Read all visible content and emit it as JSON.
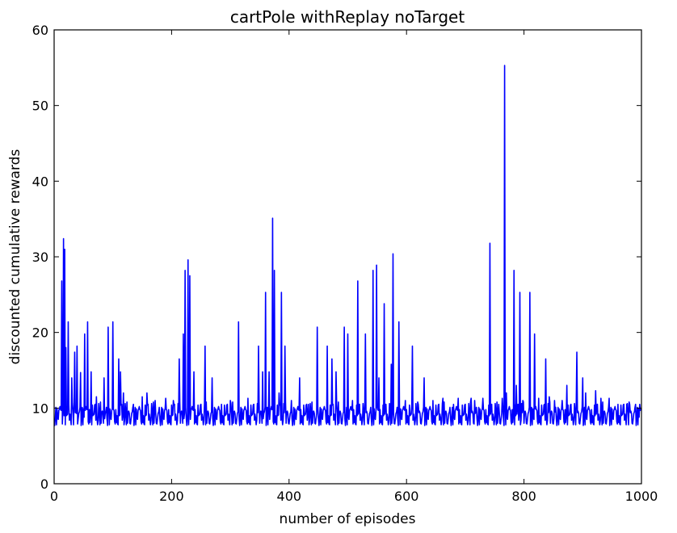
{
  "chart_data": {
    "type": "line",
    "title": "cartPole withReplay noTarget",
    "xlabel": "number of episodes",
    "ylabel": "discounted cumulative rewards",
    "xlim": [
      0,
      1000
    ],
    "ylim": [
      0,
      60
    ],
    "xticks": [
      0,
      200,
      400,
      600,
      800,
      1000
    ],
    "yticks": [
      0,
      10,
      20,
      30,
      40,
      50,
      60
    ],
    "xtick_labels": [
      "0",
      "200",
      "400",
      "600",
      "800",
      "1000"
    ],
    "ytick_labels": [
      "0",
      "10",
      "20",
      "30",
      "40",
      "50",
      "60"
    ],
    "grid": false,
    "legend": "none",
    "series": [
      {
        "color": "#0000ff",
        "baseline": [
          8.6,
          9.6,
          7.8,
          10.5,
          9.0,
          8.2,
          9.9,
          7.7,
          9.3,
          10.8,
          8.4,
          9.1,
          7.9,
          10.2,
          8.8,
          9.5,
          8.0,
          10.6,
          9.2,
          7.8,
          9.8,
          8.5,
          10.1,
          7.9,
          9.4,
          8.7,
          10.4,
          8.1,
          9.7,
          7.8
        ],
        "peaks": [
          {
            "x": 13,
            "y": 26.8
          },
          {
            "x": 16,
            "y": 32.4
          },
          {
            "x": 18,
            "y": 31.0
          },
          {
            "x": 20,
            "y": 18.0
          },
          {
            "x": 24,
            "y": 21.4
          },
          {
            "x": 30,
            "y": 14.0
          },
          {
            "x": 35,
            "y": 17.4
          },
          {
            "x": 39,
            "y": 18.2
          },
          {
            "x": 45,
            "y": 14.7
          },
          {
            "x": 52,
            "y": 19.8
          },
          {
            "x": 57,
            "y": 21.4
          },
          {
            "x": 63,
            "y": 14.8
          },
          {
            "x": 72,
            "y": 11.5
          },
          {
            "x": 85,
            "y": 14.0
          },
          {
            "x": 92,
            "y": 20.7
          },
          {
            "x": 100,
            "y": 21.4
          },
          {
            "x": 110,
            "y": 16.5
          },
          {
            "x": 113,
            "y": 14.8
          },
          {
            "x": 118,
            "y": 12.0
          },
          {
            "x": 135,
            "y": 10.5
          },
          {
            "x": 150,
            "y": 11.5
          },
          {
            "x": 158,
            "y": 12.0
          },
          {
            "x": 172,
            "y": 11.0
          },
          {
            "x": 190,
            "y": 11.3
          },
          {
            "x": 203,
            "y": 11.0
          },
          {
            "x": 213,
            "y": 16.5
          },
          {
            "x": 220,
            "y": 19.8
          },
          {
            "x": 223,
            "y": 28.2
          },
          {
            "x": 228,
            "y": 29.6
          },
          {
            "x": 231,
            "y": 27.5
          },
          {
            "x": 238,
            "y": 14.8
          },
          {
            "x": 257,
            "y": 18.2
          },
          {
            "x": 269,
            "y": 14.0
          },
          {
            "x": 285,
            "y": 10.5
          },
          {
            "x": 300,
            "y": 11.0
          },
          {
            "x": 314,
            "y": 21.4
          },
          {
            "x": 330,
            "y": 11.3
          },
          {
            "x": 348,
            "y": 18.2
          },
          {
            "x": 355,
            "y": 14.8
          },
          {
            "x": 360,
            "y": 25.3
          },
          {
            "x": 366,
            "y": 14.8
          },
          {
            "x": 372,
            "y": 35.1
          },
          {
            "x": 375,
            "y": 28.2
          },
          {
            "x": 383,
            "y": 12.0
          },
          {
            "x": 387,
            "y": 25.3
          },
          {
            "x": 393,
            "y": 18.2
          },
          {
            "x": 404,
            "y": 11.0
          },
          {
            "x": 418,
            "y": 14.0
          },
          {
            "x": 433,
            "y": 10.5
          },
          {
            "x": 448,
            "y": 20.7
          },
          {
            "x": 465,
            "y": 18.2
          },
          {
            "x": 473,
            "y": 16.5
          },
          {
            "x": 480,
            "y": 14.8
          },
          {
            "x": 494,
            "y": 20.7
          },
          {
            "x": 500,
            "y": 19.8
          },
          {
            "x": 508,
            "y": 11.0
          },
          {
            "x": 517,
            "y": 26.8
          },
          {
            "x": 530,
            "y": 19.8
          },
          {
            "x": 543,
            "y": 28.2
          },
          {
            "x": 549,
            "y": 28.9
          },
          {
            "x": 553,
            "y": 14.0
          },
          {
            "x": 562,
            "y": 23.8
          },
          {
            "x": 574,
            "y": 15.8
          },
          {
            "x": 577,
            "y": 30.4
          },
          {
            "x": 587,
            "y": 21.4
          },
          {
            "x": 598,
            "y": 11.0
          },
          {
            "x": 610,
            "y": 18.2
          },
          {
            "x": 620,
            "y": 10.5
          },
          {
            "x": 630,
            "y": 14.0
          },
          {
            "x": 645,
            "y": 11.0
          },
          {
            "x": 662,
            "y": 11.3
          },
          {
            "x": 680,
            "y": 10.5
          },
          {
            "x": 688,
            "y": 11.3
          },
          {
            "x": 700,
            "y": 10.5
          },
          {
            "x": 710,
            "y": 11.3
          },
          {
            "x": 716,
            "y": 11.0
          },
          {
            "x": 730,
            "y": 11.3
          },
          {
            "x": 742,
            "y": 31.8
          },
          {
            "x": 757,
            "y": 10.5
          },
          {
            "x": 763,
            "y": 11.3
          },
          {
            "x": 767,
            "y": 55.3
          },
          {
            "x": 770,
            "y": 12.0
          },
          {
            "x": 783,
            "y": 28.2
          },
          {
            "x": 787,
            "y": 13.0
          },
          {
            "x": 793,
            "y": 25.3
          },
          {
            "x": 798,
            "y": 11.0
          },
          {
            "x": 810,
            "y": 25.3
          },
          {
            "x": 818,
            "y": 19.8
          },
          {
            "x": 825,
            "y": 11.3
          },
          {
            "x": 837,
            "y": 16.5
          },
          {
            "x": 843,
            "y": 11.5
          },
          {
            "x": 852,
            "y": 11.0
          },
          {
            "x": 865,
            "y": 11.0
          },
          {
            "x": 873,
            "y": 13.0
          },
          {
            "x": 890,
            "y": 17.4
          },
          {
            "x": 900,
            "y": 14.0
          },
          {
            "x": 905,
            "y": 12.0
          },
          {
            "x": 922,
            "y": 12.3
          },
          {
            "x": 931,
            "y": 11.3
          },
          {
            "x": 945,
            "y": 11.3
          },
          {
            "x": 960,
            "y": 10.5
          },
          {
            "x": 975,
            "y": 10.5
          },
          {
            "x": 980,
            "y": 10.5
          },
          {
            "x": 990,
            "y": 10.5
          },
          {
            "x": 997,
            "y": 10.5
          }
        ]
      }
    ]
  }
}
